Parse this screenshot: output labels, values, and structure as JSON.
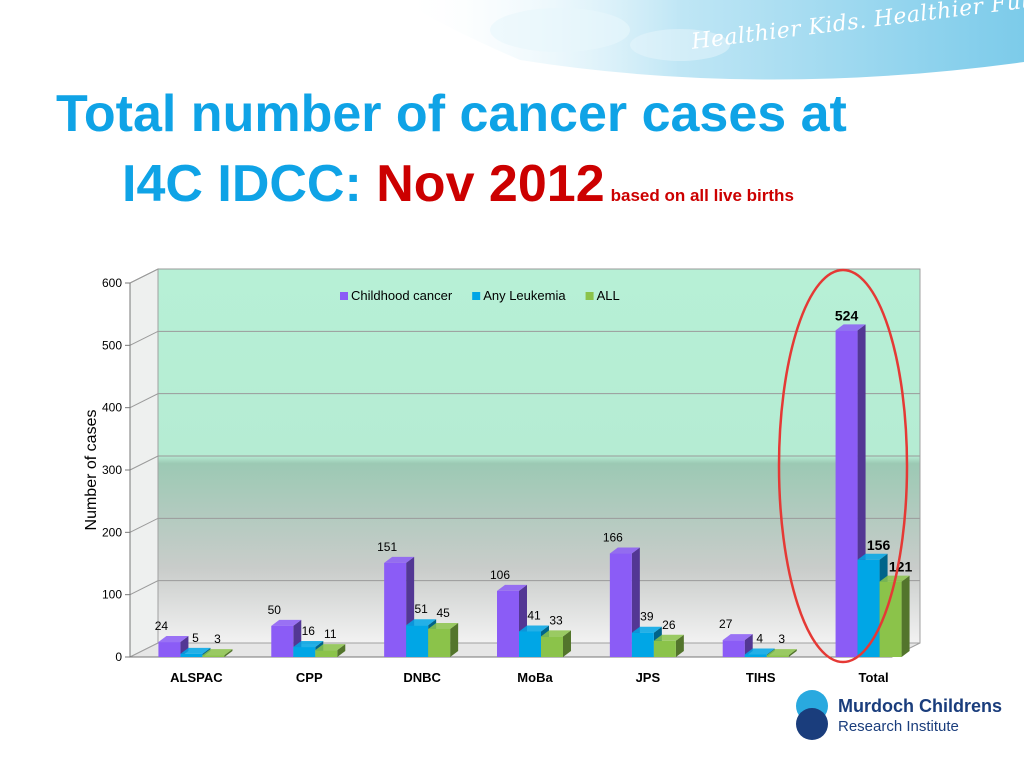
{
  "slide": {
    "tagline": "Healthier Kids. Healthier Future.",
    "title_line1": "Total number of cancer cases  at",
    "title_prefix": "I4C IDCC:",
    "title_date": "Nov 2012",
    "title_suffix": "based on all live births",
    "logo_line1": "Murdoch Childrens",
    "logo_line2": "Research Institute"
  },
  "chart_data": {
    "type": "bar",
    "categories": [
      "ALSPAC",
      "CPP",
      "DNBC",
      "MoBa",
      "JPS",
      "TIHS",
      "Total"
    ],
    "series": [
      {
        "name": "Childhood cancer",
        "values": [
          24,
          50,
          151,
          106,
          166,
          27,
          524
        ],
        "color": "#8b5cf6"
      },
      {
        "name": "Any Leukemia",
        "values": [
          5,
          16,
          51,
          41,
          39,
          4,
          156
        ],
        "color": "#00a6e6"
      },
      {
        "name": "ALL",
        "values": [
          3,
          11,
          45,
          33,
          26,
          3,
          121
        ],
        "color": "#8bc34a"
      }
    ],
    "ylabel": "Number of cases",
    "xlabel": "",
    "ylim": [
      0,
      600
    ],
    "yticks": [
      0,
      100,
      200,
      300,
      400,
      500,
      600
    ],
    "grid": true,
    "legend": "top-center",
    "highlight": "Total"
  }
}
